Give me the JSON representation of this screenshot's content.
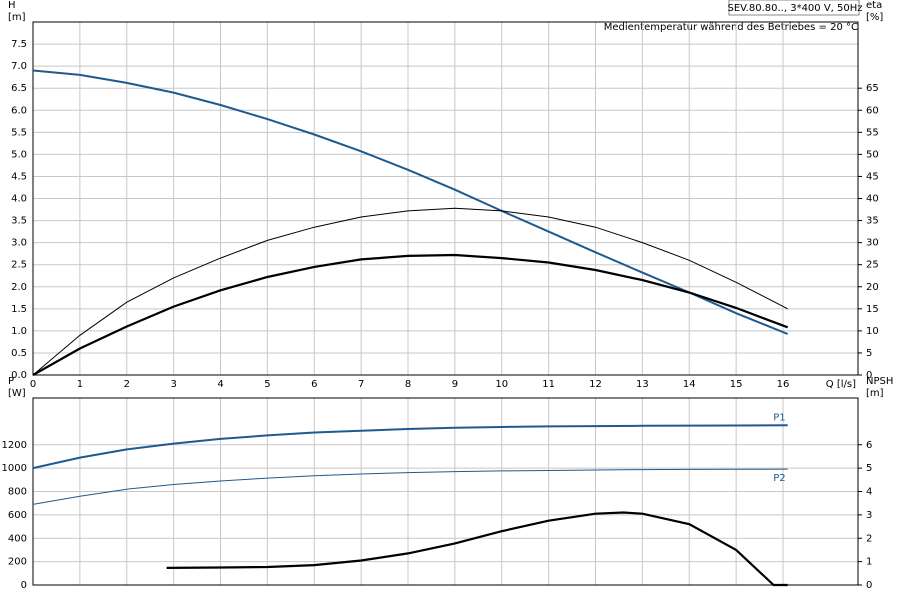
{
  "chart_data": [
    {
      "type": "line",
      "annotations": [
        "SEV.80.80.., 3*400 V, 50Hz",
        "Medientemperatur während des Betriebes = 20 °C"
      ],
      "ylabel": "H",
      "yunit": "[m]",
      "y2label": "eta",
      "y2unit": "[%]",
      "xlabel": "Q [l/s]",
      "x": [
        0,
        1,
        2,
        3,
        4,
        5,
        6,
        7,
        8,
        9,
        10,
        11,
        12,
        13,
        14,
        15,
        16.1
      ],
      "xlim": [
        0,
        17.6
      ],
      "xticks": [
        0,
        1,
        2,
        3,
        4,
        5,
        6,
        7,
        8,
        9,
        10,
        11,
        12,
        13,
        14,
        15,
        16
      ],
      "ylim": [
        0,
        8
      ],
      "yticks": [
        {
          "value": 0,
          "label": "0.0"
        },
        0.5,
        {
          "value": 1,
          "label": "1.0"
        },
        1.5,
        {
          "value": 2,
          "label": "2.0"
        },
        2.5,
        {
          "value": 3,
          "label": "3.0"
        },
        3.5,
        {
          "value": 4,
          "label": "4.0"
        },
        4.5,
        {
          "value": 5,
          "label": "5.0"
        },
        5.5,
        {
          "value": 6,
          "label": "6.0"
        },
        6.5,
        {
          "value": 7,
          "label": "7.0"
        },
        7.5
      ],
      "y2lim": [
        0,
        80
      ],
      "y2ticks": [
        0,
        5,
        10,
        15,
        20,
        25,
        30,
        35,
        40,
        45,
        50,
        55,
        60,
        65
      ],
      "grid": true,
      "series": [
        {
          "color": "#1f5a8e",
          "line_width": 2,
          "values": [
            6.9,
            6.8,
            6.62,
            6.4,
            6.12,
            5.8,
            5.45,
            5.07,
            4.65,
            4.2,
            3.72,
            3.25,
            2.78,
            2.32,
            1.87,
            1.4,
            0.93
          ]
        },
        {
          "color": "#000000",
          "line_width": 1,
          "axis": "y2",
          "values": [
            0,
            9,
            16.5,
            22,
            26.5,
            30.5,
            33.5,
            35.8,
            37.2,
            37.8,
            37.2,
            35.8,
            33.5,
            30,
            26,
            21,
            15
          ]
        },
        {
          "color": "#000000",
          "line_width": 2.2,
          "axis": "y2",
          "values": [
            0,
            6,
            11,
            15.5,
            19.2,
            22.2,
            24.5,
            26.2,
            27,
            27.2,
            26.5,
            25.5,
            23.8,
            21.5,
            18.7,
            15.2,
            10.8
          ]
        }
      ]
    },
    {
      "type": "line",
      "ylabel": "P",
      "yunit": "[W]",
      "y2label": "NPSH",
      "y2unit": "[m]",
      "xlim": [
        0,
        17.6
      ],
      "ylim": [
        0,
        1600
      ],
      "yticks": [
        0,
        200,
        400,
        600,
        800,
        1000,
        1200
      ],
      "y2lim": [
        0,
        8
      ],
      "y2ticks": [
        0,
        1,
        2,
        3,
        4,
        5,
        6
      ],
      "grid": true,
      "series": [
        {
          "name": "P1",
          "color": "#1f5a8e",
          "line_width": 2,
          "x": [
            0,
            1,
            2,
            3,
            4,
            5,
            6,
            7,
            8,
            9,
            10,
            11,
            12,
            13,
            14,
            15,
            16.1
          ],
          "values": [
            1000,
            1090,
            1160,
            1210,
            1250,
            1280,
            1305,
            1320,
            1335,
            1345,
            1352,
            1357,
            1360,
            1362,
            1364,
            1365,
            1366
          ]
        },
        {
          "name": "P2",
          "color": "#1f5a8e",
          "line_width": 1,
          "x": [
            0,
            1,
            2,
            3,
            4,
            5,
            6,
            7,
            8,
            9,
            10,
            11,
            12,
            13,
            14,
            15,
            16.1
          ],
          "values": [
            690,
            760,
            820,
            860,
            890,
            915,
            935,
            950,
            962,
            970,
            976,
            980,
            984,
            987,
            989,
            990,
            992
          ]
        },
        {
          "color": "#000000",
          "line_width": 2.2,
          "axis": "y2",
          "x": [
            2.85,
            4,
            5,
            6,
            7,
            8,
            9,
            10,
            11,
            12,
            12.6,
            13,
            14,
            15,
            15.8,
            16.1
          ],
          "values": [
            0.73,
            0.75,
            0.77,
            0.85,
            1.05,
            1.35,
            1.78,
            2.3,
            2.75,
            3.05,
            3.1,
            3.05,
            2.6,
            1.5,
            0,
            0
          ]
        }
      ]
    }
  ]
}
